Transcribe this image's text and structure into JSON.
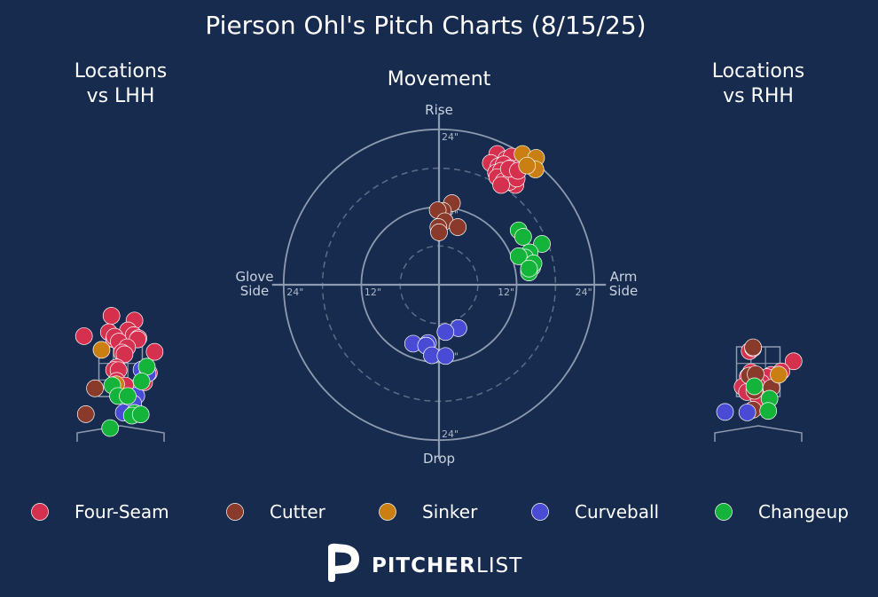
{
  "colors": {
    "background": "#162b4d",
    "grid": "#8d9ab0",
    "pitch_types": {
      "Four-Seam": "#d6304f",
      "Cutter": "#8a3a2a",
      "Sinker": "#c97f12",
      "Curveball": "#4a4bd4",
      "Changeup": "#14b33a"
    }
  },
  "brand": {
    "bold": "PITCHER",
    "light": "LIST",
    "logo_icon": "pitcherlist-p-logo"
  },
  "chart_data": [
    {
      "type": "scatter",
      "panel": "locations-lhh",
      "title": "Locations\nvs LHH",
      "units": "feet (catcher view: plate_x, plate_z)",
      "xlim": [
        -2.0,
        2.0
      ],
      "ylim": [
        0.0,
        5.0
      ],
      "strike_zone": {
        "x": [
          -0.83,
          0.83
        ],
        "z": [
          1.5,
          3.5
        ]
      },
      "points": [
        {
          "type": "Four-Seam",
          "x": -1.4,
          "z": 3.93
        },
        {
          "type": "Four-Seam",
          "x": -0.35,
          "z": 4.75
        },
        {
          "type": "Four-Seam",
          "x": 0.53,
          "z": 4.56
        },
        {
          "type": "Four-Seam",
          "x": -0.45,
          "z": 4.09
        },
        {
          "type": "Four-Seam",
          "x": 0.28,
          "z": 4.16
        },
        {
          "type": "Four-Seam",
          "x": 0.5,
          "z": 3.97
        },
        {
          "type": "Four-Seam",
          "x": -0.25,
          "z": 3.81
        },
        {
          "type": "Four-Seam",
          "x": -0.23,
          "z": 3.91
        },
        {
          "type": "Four-Seam",
          "x": -0.07,
          "z": 3.71
        },
        {
          "type": "Four-Seam",
          "x": 0.68,
          "z": 3.85
        },
        {
          "type": "Four-Seam",
          "x": 0.65,
          "z": 3.8
        },
        {
          "type": "Four-Seam",
          "x": 0.25,
          "z": 3.48
        },
        {
          "type": "Four-Seam",
          "x": 1.3,
          "z": 3.3
        },
        {
          "type": "Four-Seam",
          "x": 0.05,
          "z": 3.27
        },
        {
          "type": "Four-Seam",
          "x": 0.15,
          "z": 3.2
        },
        {
          "type": "Four-Seam",
          "x": -0.15,
          "z": 2.67
        },
        {
          "type": "Four-Seam",
          "x": -0.25,
          "z": 2.57
        },
        {
          "type": "Four-Seam",
          "x": -0.08,
          "z": 2.56
        },
        {
          "type": "Four-Seam",
          "x": 1.08,
          "z": 2.45
        },
        {
          "type": "Four-Seam",
          "x": -0.15,
          "z": 2.13
        },
        {
          "type": "Four-Seam",
          "x": 0.18,
          "z": 1.94
        },
        {
          "type": "Four-Seam",
          "x": 0.9,
          "z": 2.07
        },
        {
          "type": "Four-Seam",
          "x": 0.48,
          "z": 1.38
        },
        {
          "type": "Sinker",
          "x": -0.73,
          "z": 3.38
        },
        {
          "type": "Sinker",
          "x": -0.17,
          "z": 1.99
        },
        {
          "type": "Cutter",
          "x": -0.98,
          "z": 1.83
        },
        {
          "type": "Cutter",
          "x": -1.33,
          "z": 0.79
        },
        {
          "type": "Curveball",
          "x": 0.8,
          "z": 2.58
        },
        {
          "type": "Curveball",
          "x": 1.03,
          "z": 2.42
        },
        {
          "type": "Curveball",
          "x": 0.6,
          "z": 1.53
        },
        {
          "type": "Curveball",
          "x": 0.48,
          "z": 1.22
        },
        {
          "type": "Curveball",
          "x": 0.12,
          "z": 0.85
        },
        {
          "type": "Changeup",
          "x": 1.0,
          "z": 2.7
        },
        {
          "type": "Changeup",
          "x": 0.8,
          "z": 2.11
        },
        {
          "type": "Changeup",
          "x": -0.32,
          "z": 1.95
        },
        {
          "type": "Changeup",
          "x": -0.1,
          "z": 1.52
        },
        {
          "type": "Changeup",
          "x": 0.27,
          "z": 1.52
        },
        {
          "type": "Changeup",
          "x": 0.53,
          "z": 0.84
        },
        {
          "type": "Changeup",
          "x": 0.43,
          "z": 0.73
        },
        {
          "type": "Changeup",
          "x": 0.77,
          "z": 0.78
        },
        {
          "type": "Changeup",
          "x": -0.4,
          "z": 0.23
        }
      ]
    },
    {
      "type": "scatter",
      "panel": "movement",
      "chart_style": "polar",
      "title": "Movement",
      "units": "inches (arm-side break, induced vertical break)",
      "axis_labels": {
        "top": "Rise",
        "bottom": "Drop",
        "left": "Glove\nSide",
        "right": "Arm\nSide"
      },
      "rings": [
        {
          "radius": 6,
          "style": "dashed",
          "label": ""
        },
        {
          "radius": 12,
          "style": "solid",
          "label": "12\""
        },
        {
          "radius": 18,
          "style": "dashed",
          "label": ""
        },
        {
          "radius": 24,
          "style": "solid",
          "label": "24\""
        }
      ],
      "lim": 24,
      "points": [
        {
          "type": "Four-Seam",
          "h": 9.0,
          "v": 20.2
        },
        {
          "type": "Four-Seam",
          "h": 10.4,
          "v": 19.4
        },
        {
          "type": "Four-Seam",
          "h": 11.2,
          "v": 19.8
        },
        {
          "type": "Four-Seam",
          "h": 8.0,
          "v": 18.8
        },
        {
          "type": "Four-Seam",
          "h": 9.2,
          "v": 18.3
        },
        {
          "type": "Four-Seam",
          "h": 10.0,
          "v": 18.6
        },
        {
          "type": "Four-Seam",
          "h": 11.0,
          "v": 18.0
        },
        {
          "type": "Four-Seam",
          "h": 12.6,
          "v": 18.2
        },
        {
          "type": "Four-Seam",
          "h": 8.8,
          "v": 17.3
        },
        {
          "type": "Four-Seam",
          "h": 9.6,
          "v": 17.6
        },
        {
          "type": "Four-Seam",
          "h": 11.4,
          "v": 17.0
        },
        {
          "type": "Four-Seam",
          "h": 9.0,
          "v": 16.6
        },
        {
          "type": "Four-Seam",
          "h": 10.0,
          "v": 16.0
        },
        {
          "type": "Four-Seam",
          "h": 11.8,
          "v": 15.4
        },
        {
          "type": "Four-Seam",
          "h": 10.9,
          "v": 15.9
        },
        {
          "type": "Four-Seam",
          "h": 12.0,
          "v": 16.4
        },
        {
          "type": "Four-Seam",
          "h": 9.6,
          "v": 15.4
        },
        {
          "type": "Four-Seam",
          "h": 10.8,
          "v": 17.9
        },
        {
          "type": "Four-Seam",
          "h": 12.2,
          "v": 17.6
        },
        {
          "type": "Sinker",
          "h": 12.9,
          "v": 20.2
        },
        {
          "type": "Sinker",
          "h": 15.0,
          "v": 19.6
        },
        {
          "type": "Sinker",
          "h": 14.9,
          "v": 17.8
        },
        {
          "type": "Sinker",
          "h": 13.6,
          "v": 18.4
        },
        {
          "type": "Cutter",
          "h": 2.0,
          "v": 12.6
        },
        {
          "type": "Cutter",
          "h": 0.6,
          "v": 11.4
        },
        {
          "type": "Cutter",
          "h": -0.2,
          "v": 11.5
        },
        {
          "type": "Cutter",
          "h": 0.9,
          "v": 9.8
        },
        {
          "type": "Cutter",
          "h": 2.9,
          "v": 8.9
        },
        {
          "type": "Cutter",
          "h": -0.1,
          "v": 8.9
        },
        {
          "type": "Cutter",
          "h": 0.0,
          "v": 8.1
        },
        {
          "type": "Changeup",
          "h": 12.3,
          "v": 8.4
        },
        {
          "type": "Changeup",
          "h": 13.0,
          "v": 7.4
        },
        {
          "type": "Changeup",
          "h": 15.9,
          "v": 6.3
        },
        {
          "type": "Changeup",
          "h": 14.0,
          "v": 5.0
        },
        {
          "type": "Changeup",
          "h": 13.3,
          "v": 4.2
        },
        {
          "type": "Changeup",
          "h": 12.3,
          "v": 4.4
        },
        {
          "type": "Changeup",
          "h": 14.4,
          "v": 2.7
        },
        {
          "type": "Changeup",
          "h": 13.9,
          "v": 2.3
        },
        {
          "type": "Changeup",
          "h": 14.6,
          "v": 3.3
        },
        {
          "type": "Changeup",
          "h": 13.9,
          "v": 1.9
        },
        {
          "type": "Changeup",
          "h": 13.9,
          "v": 2.5
        },
        {
          "type": "Curveball",
          "h": 3.0,
          "v": -6.7
        },
        {
          "type": "Curveball",
          "h": 1.0,
          "v": -7.3
        },
        {
          "type": "Curveball",
          "h": -1.7,
          "v": -9.0
        },
        {
          "type": "Curveball",
          "h": -4.0,
          "v": -9.1
        },
        {
          "type": "Curveball",
          "h": -2.0,
          "v": -9.4
        },
        {
          "type": "Curveball",
          "h": -1.1,
          "v": -10.9
        },
        {
          "type": "Curveball",
          "h": 1.0,
          "v": -11.0
        }
      ]
    },
    {
      "type": "scatter",
      "panel": "locations-rhh",
      "title": "Locations\nvs RHH",
      "units": "feet (catcher view: plate_x, plate_z)",
      "xlim": [
        -2.0,
        2.0
      ],
      "ylim": [
        0.0,
        5.0
      ],
      "strike_zone": {
        "x": [
          -0.83,
          0.83
        ],
        "z": [
          1.5,
          3.5
        ]
      },
      "points": [
        {
          "type": "Four-Seam",
          "x": -0.33,
          "z": 3.33
        },
        {
          "type": "Four-Seam",
          "x": -0.2,
          "z": 3.44
        },
        {
          "type": "Four-Seam",
          "x": 1.35,
          "z": 2.92
        },
        {
          "type": "Four-Seam",
          "x": -0.28,
          "z": 2.48
        },
        {
          "type": "Four-Seam",
          "x": 0.5,
          "z": 2.37
        },
        {
          "type": "Four-Seam",
          "x": 0.88,
          "z": 2.51
        },
        {
          "type": "Four-Seam",
          "x": 0.33,
          "z": 2.28
        },
        {
          "type": "Four-Seam",
          "x": -0.4,
          "z": 2.31
        },
        {
          "type": "Four-Seam",
          "x": -0.25,
          "z": 2.26
        },
        {
          "type": "Four-Seam",
          "x": 0.12,
          "z": 2.05
        },
        {
          "type": "Four-Seam",
          "x": -0.1,
          "z": 1.73
        },
        {
          "type": "Four-Seam",
          "x": -0.35,
          "z": 1.95
        },
        {
          "type": "Four-Seam",
          "x": -0.6,
          "z": 1.89
        },
        {
          "type": "Four-Seam",
          "x": -0.05,
          "z": 1.94
        },
        {
          "type": "Four-Seam",
          "x": -0.43,
          "z": 1.68
        },
        {
          "type": "Four-Seam",
          "x": 0.02,
          "z": 1.41
        },
        {
          "type": "Cutter",
          "x": -0.2,
          "z": 3.48
        },
        {
          "type": "Cutter",
          "x": -0.35,
          "z": 2.34
        },
        {
          "type": "Cutter",
          "x": -0.1,
          "z": 2.4
        },
        {
          "type": "Cutter",
          "x": -0.15,
          "z": 1.73
        },
        {
          "type": "Cutter",
          "x": 0.5,
          "z": 1.85
        },
        {
          "type": "Cutter",
          "x": -0.2,
          "z": 0.97
        },
        {
          "type": "Sinker",
          "x": 0.78,
          "z": 2.38
        },
        {
          "type": "Changeup",
          "x": -0.15,
          "z": 1.91
        },
        {
          "type": "Changeup",
          "x": 0.43,
          "z": 1.41
        },
        {
          "type": "Changeup",
          "x": 0.38,
          "z": 0.92
        },
        {
          "type": "Curveball",
          "x": -1.27,
          "z": 0.88
        },
        {
          "type": "Curveball",
          "x": -0.42,
          "z": 0.86
        }
      ]
    }
  ],
  "title": "Pierson Ohl's Pitch Charts (8/15/25)",
  "legend": [
    {
      "label": "Four-Seam",
      "color": "#d6304f"
    },
    {
      "label": "Cutter",
      "color": "#8a3a2a"
    },
    {
      "label": "Sinker",
      "color": "#c97f12"
    },
    {
      "label": "Curveball",
      "color": "#4a4bd4"
    },
    {
      "label": "Changeup",
      "color": "#14b33a"
    }
  ]
}
